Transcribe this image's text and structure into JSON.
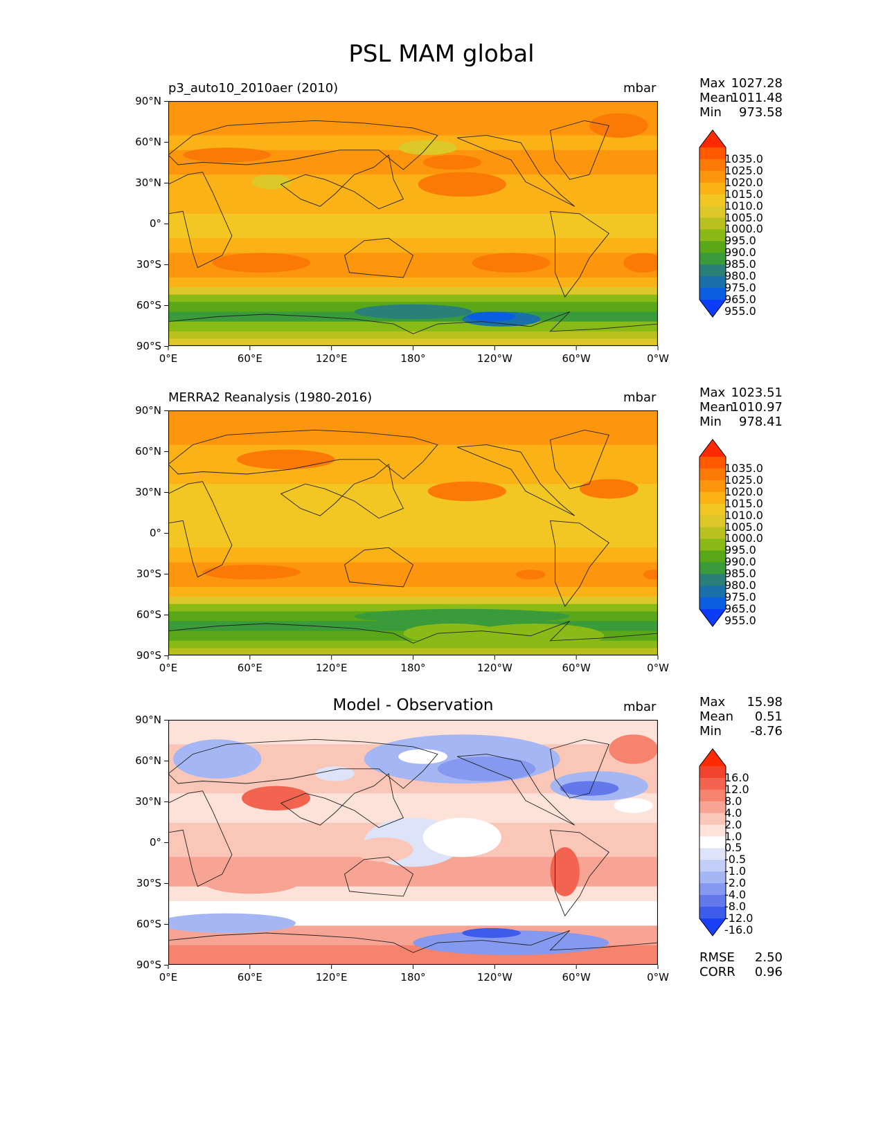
{
  "title": "PSL MAM global",
  "lat_ticks": [
    "90°N",
    "60°N",
    "30°N",
    "0°",
    "30°S",
    "60°S",
    "90°S"
  ],
  "lon_ticks": [
    "0°E",
    "60°E",
    "120°E",
    "180°",
    "120°W",
    "60°W",
    "0°W"
  ],
  "panels": [
    {
      "title": "p3_auto10_2010aer (2010)",
      "units": "mbar",
      "stats": [
        {
          "label": "Max",
          "value": "1027.28"
        },
        {
          "label": "Mean",
          "value": "1011.48"
        },
        {
          "label": "Min",
          "value": "973.58"
        }
      ],
      "colorbar": [
        "1035.0",
        "1025.0",
        "1020.0",
        "1015.0",
        "1010.0",
        "1005.0",
        "1000.0",
        "995.0",
        "990.0",
        "985.0",
        "980.0",
        "975.0",
        "965.0",
        "955.0"
      ]
    },
    {
      "title": "MERRA2 Reanalysis (1980-2016)",
      "units": "mbar",
      "stats": [
        {
          "label": "Max",
          "value": "1023.51"
        },
        {
          "label": "Mean",
          "value": "1010.97"
        },
        {
          "label": "Min",
          "value": "978.41"
        }
      ],
      "colorbar": [
        "1035.0",
        "1025.0",
        "1020.0",
        "1015.0",
        "1010.0",
        "1005.0",
        "1000.0",
        "995.0",
        "990.0",
        "985.0",
        "980.0",
        "975.0",
        "965.0",
        "955.0"
      ]
    },
    {
      "title": "Model - Observation",
      "units": "mbar",
      "stats": [
        {
          "label": "Max",
          "value": "15.98"
        },
        {
          "label": "Mean",
          "value": "0.51"
        },
        {
          "label": "Min",
          "value": "-8.76"
        }
      ],
      "colorbar": [
        "16.0",
        "12.0",
        "8.0",
        "4.0",
        "2.0",
        "1.0",
        "0.5",
        "-0.5",
        "-1.0",
        "-2.0",
        "-4.0",
        "-8.0",
        "-12.0",
        "-16.0"
      ],
      "metrics": [
        {
          "label": "RMSE",
          "value": "2.50"
        },
        {
          "label": "CORR",
          "value": "0.96"
        }
      ]
    }
  ],
  "colors": {
    "psl": [
      "#ff2a00",
      "#ff5a00",
      "#fb7a06",
      "#fd960c",
      "#fbb216",
      "#f3c723",
      "#dcc828",
      "#b8c11e",
      "#8aba15",
      "#5aa818",
      "#3a9b3a",
      "#2a8078",
      "#1a70a8",
      "#0c5ee0",
      "#0a3cfa"
    ],
    "diff": [
      "#ff2a00",
      "#f2442c",
      "#f26450",
      "#f5836e",
      "#f7a494",
      "#f9c6b8",
      "#fde2da",
      "#ffffff",
      "#dde4f9",
      "#c2cef7",
      "#a5b6f5",
      "#8499ef",
      "#6378ea",
      "#3e5cec",
      "#1a40f6"
    ]
  }
}
